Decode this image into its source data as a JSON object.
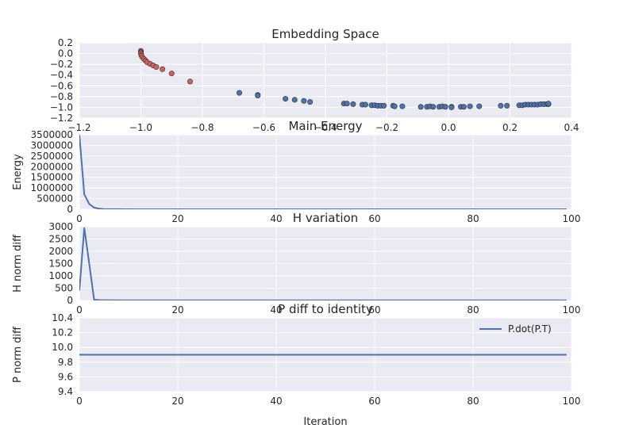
{
  "chart_data": [
    {
      "type": "scatter",
      "title": "Embedding Space",
      "xlabel": "",
      "ylabel": "",
      "xlim": [
        -1.2,
        0.4
      ],
      "ylim": [
        -1.2,
        0.2
      ],
      "xticks": [
        "−1.2",
        "−1.0",
        "−0.8",
        "−0.6",
        "−0.4",
        "−0.2",
        "0.0",
        "0.2",
        "0.4"
      ],
      "yticks": [
        "0.2",
        "0.0",
        "−0.2",
        "−0.4",
        "−0.6",
        "−0.8",
        "−1.0",
        "−1.2"
      ],
      "grid": true,
      "series": [
        {
          "color": "#d65f5f",
          "points": [
            [
              -1.0,
              0.05
            ],
            [
              -1.0,
              0.03
            ],
            [
              -1.0,
              0.01
            ],
            [
              -0.999,
              -0.02
            ],
            [
              -0.998,
              -0.04
            ],
            [
              -0.995,
              -0.07
            ],
            [
              -0.99,
              -0.1
            ],
            [
              -0.985,
              -0.13
            ],
            [
              -0.98,
              -0.16
            ],
            [
              -0.97,
              -0.19
            ],
            [
              -0.96,
              -0.22
            ],
            [
              -0.95,
              -0.25
            ],
            [
              -0.93,
              -0.29
            ],
            [
              -0.9,
              -0.37
            ],
            [
              -0.84,
              -0.52
            ]
          ]
        },
        {
          "color": "#4c72b0",
          "points": [
            [
              -0.68,
              -0.73
            ],
            [
              -0.62,
              -0.77
            ],
            [
              -0.62,
              -0.78
            ],
            [
              -0.53,
              -0.84
            ],
            [
              -0.5,
              -0.86
            ],
            [
              -0.47,
              -0.88
            ],
            [
              -0.45,
              -0.9
            ],
            [
              -0.34,
              -0.93
            ],
            [
              -0.33,
              -0.93
            ],
            [
              -0.31,
              -0.94
            ],
            [
              -0.28,
              -0.95
            ],
            [
              -0.27,
              -0.95
            ],
            [
              -0.25,
              -0.96
            ],
            [
              -0.24,
              -0.96
            ],
            [
              -0.23,
              -0.97
            ],
            [
              -0.22,
              -0.97
            ],
            [
              -0.21,
              -0.97
            ],
            [
              -0.18,
              -0.97
            ],
            [
              -0.175,
              -0.98
            ],
            [
              -0.15,
              -0.98
            ],
            [
              -0.09,
              -0.99
            ],
            [
              -0.07,
              -0.99
            ],
            [
              -0.06,
              -0.98
            ],
            [
              -0.05,
              -0.99
            ],
            [
              -0.03,
              -0.99
            ],
            [
              -0.02,
              -0.98
            ],
            [
              -0.01,
              -0.99
            ],
            [
              0.01,
              -0.99
            ],
            [
              0.01,
              -1.0
            ],
            [
              0.04,
              -0.99
            ],
            [
              0.05,
              -0.99
            ],
            [
              0.07,
              -0.98
            ],
            [
              0.1,
              -0.98
            ],
            [
              0.17,
              -0.97
            ],
            [
              0.19,
              -0.97
            ],
            [
              0.23,
              -0.96
            ],
            [
              0.24,
              -0.96
            ],
            [
              0.25,
              -0.95
            ],
            [
              0.26,
              -0.95
            ],
            [
              0.27,
              -0.95
            ],
            [
              0.28,
              -0.95
            ],
            [
              0.29,
              -0.95
            ],
            [
              0.3,
              -0.94
            ],
            [
              0.31,
              -0.94
            ],
            [
              0.32,
              -0.94
            ],
            [
              0.325,
              -0.94
            ],
            [
              0.325,
              -0.93
            ]
          ]
        }
      ]
    },
    {
      "type": "line",
      "title": "Main Energy",
      "xlabel": "",
      "ylabel": "Energy",
      "xlim": [
        0,
        100
      ],
      "ylim": [
        0,
        3500000
      ],
      "xticks": [
        "0",
        "20",
        "40",
        "60",
        "80",
        "100"
      ],
      "yticks": [
        "3500000",
        "3000000",
        "2500000",
        "2000000",
        "1500000",
        "1000000",
        "500000",
        "0"
      ],
      "grid": true,
      "series": [
        {
          "color": "#4c72b0",
          "x": [
            0,
            1,
            2,
            3,
            4,
            5,
            6,
            8,
            10,
            99
          ],
          "y": [
            3500000,
            700000,
            250000,
            80000,
            25000,
            10000,
            5000,
            2000,
            1000,
            1000
          ]
        }
      ]
    },
    {
      "type": "line",
      "title": "H variation",
      "xlabel": "",
      "ylabel": "H norm diff",
      "xlim": [
        0,
        100
      ],
      "ylim": [
        0,
        3000
      ],
      "xticks": [
        "0",
        "20",
        "40",
        "60",
        "80",
        "100"
      ],
      "yticks": [
        "3000",
        "2500",
        "2000",
        "1500",
        "1000",
        "500",
        "0"
      ],
      "grid": true,
      "series": [
        {
          "color": "#4c72b0",
          "x": [
            0,
            1,
            2,
            3,
            4,
            5,
            6,
            10,
            99
          ],
          "y": [
            400,
            2950,
            1500,
            30,
            15,
            10,
            6,
            3,
            2
          ]
        }
      ]
    },
    {
      "type": "line",
      "title": "P diff to identity",
      "xlabel": "Iteration",
      "ylabel": "P norm diff",
      "xlim": [
        0,
        100
      ],
      "ylim": [
        9.4,
        10.4
      ],
      "xticks": [
        "0",
        "20",
        "40",
        "60",
        "80",
        "100"
      ],
      "yticks": [
        "10.4",
        "10.2",
        "10.0",
        "9.8",
        "9.6",
        "9.4"
      ],
      "grid": true,
      "legend": "top-right",
      "series": [
        {
          "name": "P.dot(P.T)",
          "color": "#4c72b0",
          "x": [
            0,
            99
          ],
          "y": [
            9.9,
            9.9
          ]
        }
      ]
    }
  ]
}
